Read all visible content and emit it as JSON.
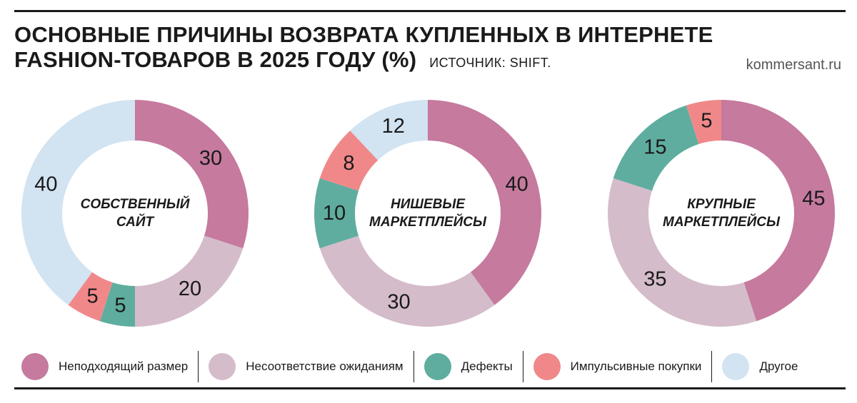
{
  "header": {
    "title_line1": "Основные причины возврата купленных в интернете",
    "title_line2": "fashion-товаров в 2025 году (%)",
    "source": "Источник: Shift.",
    "site": "kommersant.ru"
  },
  "colors": {
    "Неподходящий размер": "#c57a9e",
    "Несоответствие ожиданиям": "#d5bcca",
    "Дефекты": "#5fad9f",
    "Импульсивные покупки": "#f0888a",
    "Другое": "#d2e3f1"
  },
  "chart_data": [
    {
      "type": "pie",
      "donut": true,
      "title": "Собственный сайт",
      "categories": [
        "Неподходящий размер",
        "Несоответствие ожиданиям",
        "Дефекты",
        "Импульсивные покупки",
        "Другое"
      ],
      "values": [
        30,
        20,
        5,
        5,
        40
      ]
    },
    {
      "type": "pie",
      "donut": true,
      "title": "Нишевые маркетплейсы",
      "categories": [
        "Неподходящий размер",
        "Несоответствие ожиданиям",
        "Дефекты",
        "Импульсивные покупки",
        "Другое"
      ],
      "values": [
        40,
        30,
        10,
        8,
        12
      ]
    },
    {
      "type": "pie",
      "donut": true,
      "title": "Крупные маркетплейсы",
      "categories": [
        "Неподходящий размер",
        "Несоответствие ожиданиям",
        "Дефекты",
        "Импульсивные покупки"
      ],
      "values": [
        45,
        35,
        15,
        5
      ]
    }
  ],
  "legend": [
    "Неподходящий размер",
    "Несоответствие ожиданиям",
    "Дефекты",
    "Импульсивные покупки",
    "Другое"
  ]
}
